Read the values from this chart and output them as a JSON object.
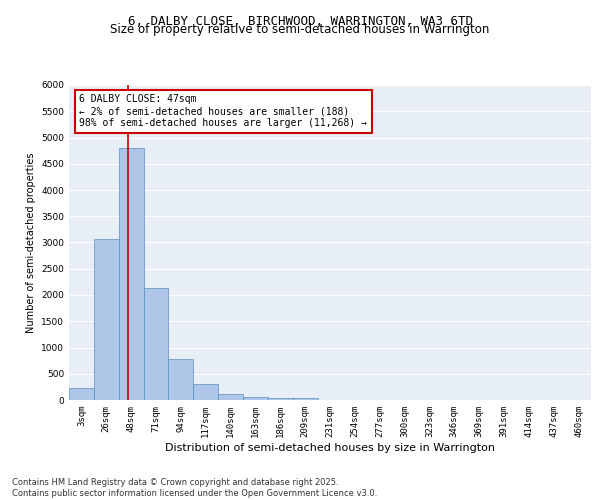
{
  "title": "6, DALBY CLOSE, BIRCHWOOD, WARRINGTON, WA3 6TD",
  "subtitle": "Size of property relative to semi-detached houses in Warrington",
  "xlabel": "Distribution of semi-detached houses by size in Warrington",
  "ylabel": "Number of semi-detached properties",
  "categories": [
    "3sqm",
    "26sqm",
    "48sqm",
    "71sqm",
    "94sqm",
    "117sqm",
    "140sqm",
    "163sqm",
    "186sqm",
    "209sqm",
    "231sqm",
    "254sqm",
    "277sqm",
    "300sqm",
    "323sqm",
    "346sqm",
    "369sqm",
    "391sqm",
    "414sqm",
    "437sqm",
    "460sqm"
  ],
  "bar_values": [
    230,
    3060,
    4800,
    2140,
    790,
    305,
    120,
    65,
    40,
    30,
    0,
    0,
    0,
    0,
    0,
    0,
    0,
    0,
    0,
    0,
    0
  ],
  "bar_color": "#aec6e8",
  "bar_edge_color": "#5a8fc2",
  "highlight_color": "#cc0000",
  "annotation_text": "6 DALBY CLOSE: 47sqm\n← 2% of semi-detached houses are smaller (188)\n98% of semi-detached houses are larger (11,268) →",
  "annotation_box_color": "#ffffff",
  "annotation_box_edge_color": "#cc0000",
  "ylim": [
    0,
    6000
  ],
  "yticks": [
    0,
    500,
    1000,
    1500,
    2000,
    2500,
    3000,
    3500,
    4000,
    4500,
    5000,
    5500,
    6000
  ],
  "background_color": "#e8eef5",
  "footer_text": "Contains HM Land Registry data © Crown copyright and database right 2025.\nContains public sector information licensed under the Open Government Licence v3.0.",
  "title_fontsize": 9,
  "subtitle_fontsize": 8.5,
  "xlabel_fontsize": 8,
  "ylabel_fontsize": 7,
  "tick_fontsize": 6.5,
  "annotation_fontsize": 7,
  "footer_fontsize": 6
}
